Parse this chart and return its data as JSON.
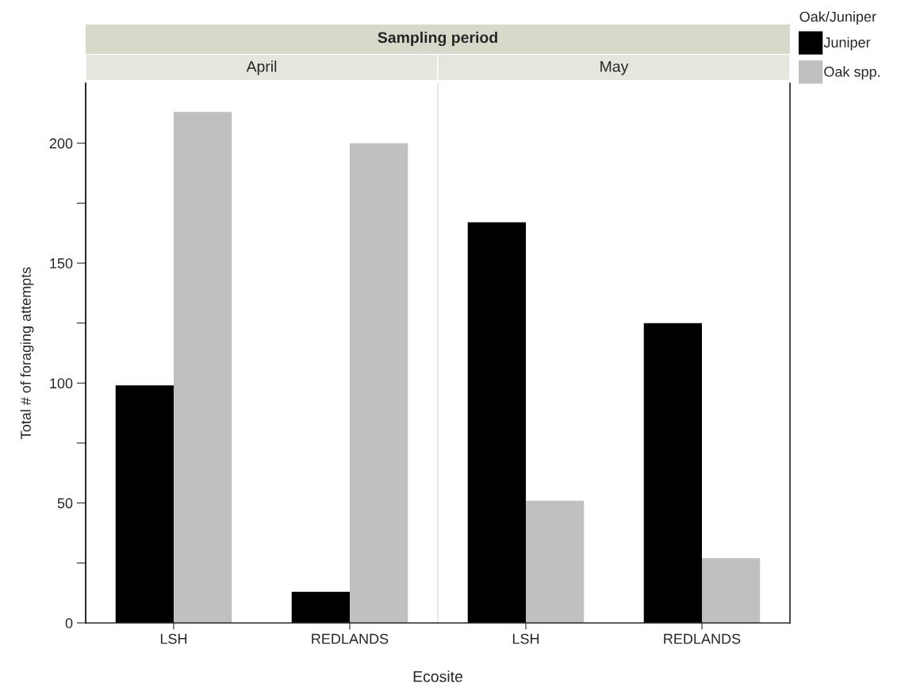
{
  "chart_data": [
    {
      "type": "bar",
      "title": "April",
      "ylabel": "Total # of foraging attempts",
      "xlabel": "Ecosite",
      "annotations": [
        "Sampling period"
      ],
      "categories": [
        "LSH",
        "REDLANDS"
      ],
      "series": [
        {
          "color": "#000000",
          "values": [
            99,
            13
          ]
        },
        {
          "color": "#c0c0c0",
          "values": [
            213,
            200
          ]
        }
      ],
      "ylim": [
        0,
        225
      ],
      "yticks": [
        0,
        {
          "value": 25,
          "label": null
        },
        50,
        {
          "value": 75,
          "label": null
        },
        100,
        {
          "value": 125,
          "label": null
        },
        150,
        {
          "value": 175,
          "label": null
        },
        200
      ]
    },
    {
      "type": "bar",
      "title": "May",
      "legend_title": "Oak/Juniper",
      "categories": [
        "LSH",
        "REDLANDS"
      ],
      "series": [
        {
          "name": "Juniper",
          "color": "#000000",
          "values": [
            167,
            125
          ]
        },
        {
          "name": "Oak spp.",
          "color": "#c0c0c0",
          "values": [
            51,
            27
          ]
        }
      ],
      "ylim": [
        0,
        225
      ],
      "tick_labels": "x",
      "legend": "right"
    }
  ]
}
